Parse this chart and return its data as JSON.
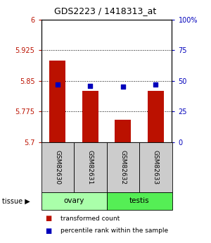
{
  "title": "GDS2223 / 1418313_at",
  "samples": [
    "GSM82630",
    "GSM82631",
    "GSM82632",
    "GSM82633"
  ],
  "red_values": [
    5.9,
    5.825,
    5.755,
    5.825
  ],
  "blue_values": [
    47,
    46,
    45,
    47
  ],
  "ylim_left": [
    5.7,
    6.0
  ],
  "ylim_right": [
    0,
    100
  ],
  "yticks_left": [
    5.7,
    5.775,
    5.85,
    5.925,
    6.0
  ],
  "ytick_labels_left": [
    "5.7",
    "5.775",
    "5.85",
    "5.925",
    "6"
  ],
  "yticks_right": [
    0,
    25,
    50,
    75,
    100
  ],
  "ytick_labels_right": [
    "0",
    "25",
    "50",
    "75",
    "100%"
  ],
  "bar_color": "#bb1100",
  "dot_color": "#0000bb",
  "label_box_color": "#cccccc",
  "ovary_color": "#aaffaa",
  "testis_color": "#55ee55",
  "legend_items": [
    {
      "label": "transformed count",
      "color": "#bb1100"
    },
    {
      "label": "percentile rank within the sample",
      "color": "#0000bb"
    }
  ],
  "bar_width": 0.5
}
